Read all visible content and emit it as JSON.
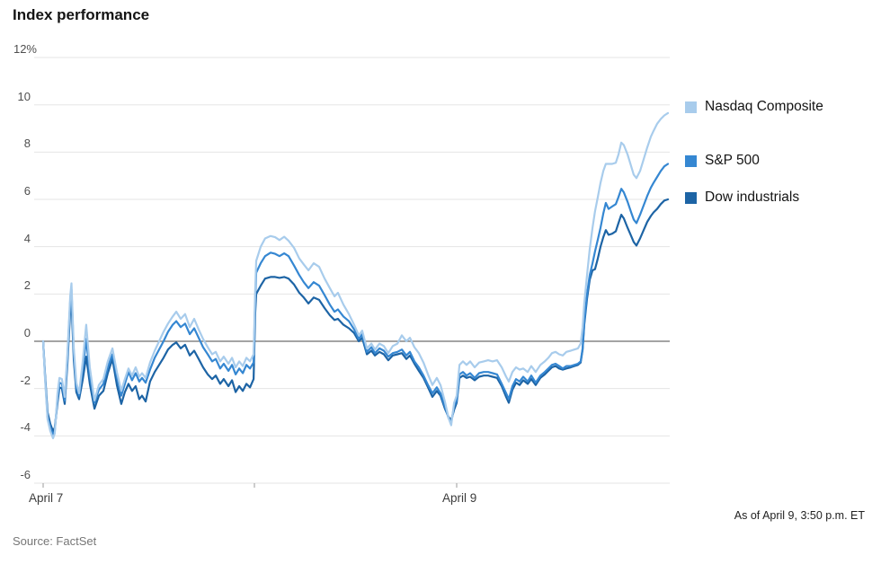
{
  "title": "Index performance",
  "source": "Source: FactSet",
  "as_of": "As of April 9, 3:50 p.m. ET",
  "legend_note": "legend rows aligned to line endpoints",
  "chart_data": {
    "type": "line",
    "title": "Index performance",
    "xlabel": "",
    "ylabel": "%",
    "ylim": [
      -6,
      12
    ],
    "grid": "horizontal",
    "legend_position": "right",
    "colors": {
      "gridline": "#e5e5e5",
      "zero_line": "#6e6e6e",
      "axis_tick": "#9b9b9b",
      "nasdaq": "#a8ccec",
      "sp500": "#3587d2",
      "dow": "#1d64a5"
    },
    "y_ticks": [
      {
        "value": 12,
        "label": "12%"
      },
      {
        "value": 10,
        "label": "10"
      },
      {
        "value": 8,
        "label": "8"
      },
      {
        "value": 6,
        "label": "6"
      },
      {
        "value": 4,
        "label": "4"
      },
      {
        "value": 2,
        "label": "2"
      },
      {
        "value": 0,
        "label": "0"
      },
      {
        "value": -2,
        "label": "-2"
      },
      {
        "value": -4,
        "label": "-4"
      },
      {
        "value": -6,
        "label": "-6"
      }
    ],
    "x_ticks": [
      {
        "t": 0,
        "label": "April 7"
      },
      {
        "t": 1,
        "label": ""
      },
      {
        "t": 2,
        "label": "April 9"
      }
    ],
    "x_unit": "trading day (0 = April 7 open, 1 = April 8 open, 2 = April 9 open, 3 = April 9 close ~3:50 p.m.)",
    "x": [
      0.0,
      0.009,
      0.021,
      0.034,
      0.047,
      0.055,
      0.068,
      0.077,
      0.089,
      0.102,
      0.115,
      0.128,
      0.134,
      0.145,
      0.157,
      0.17,
      0.187,
      0.204,
      0.221,
      0.243,
      0.264,
      0.285,
      0.306,
      0.328,
      0.349,
      0.37,
      0.387,
      0.404,
      0.421,
      0.438,
      0.455,
      0.468,
      0.485,
      0.506,
      0.528,
      0.549,
      0.57,
      0.591,
      0.613,
      0.63,
      0.651,
      0.672,
      0.694,
      0.715,
      0.736,
      0.757,
      0.779,
      0.8,
      0.817,
      0.838,
      0.855,
      0.877,
      0.894,
      0.911,
      0.928,
      0.945,
      0.962,
      0.979,
      0.996,
      1.004,
      1.009,
      1.031,
      1.053,
      1.08,
      1.102,
      1.124,
      1.147,
      1.169,
      1.196,
      1.222,
      1.244,
      1.267,
      1.293,
      1.32,
      1.347,
      1.373,
      1.396,
      1.413,
      1.44,
      1.467,
      1.493,
      1.516,
      1.533,
      1.556,
      1.578,
      1.596,
      1.618,
      1.64,
      1.662,
      1.684,
      1.707,
      1.729,
      1.751,
      1.769,
      1.791,
      1.813,
      1.836,
      1.858,
      1.88,
      1.902,
      1.92,
      1.942,
      1.96,
      1.973,
      1.987,
      2.0,
      2.013,
      2.03,
      2.047,
      2.064,
      2.085,
      2.106,
      2.128,
      2.149,
      2.17,
      2.191,
      2.213,
      2.234,
      2.247,
      2.264,
      2.281,
      2.298,
      2.315,
      2.336,
      2.353,
      2.374,
      2.396,
      2.417,
      2.434,
      2.451,
      2.468,
      2.485,
      2.502,
      2.519,
      2.54,
      2.557,
      2.574,
      2.587,
      2.596,
      2.604,
      2.617,
      2.63,
      2.643,
      2.655,
      2.668,
      2.681,
      2.694,
      2.706,
      2.719,
      2.736,
      2.753,
      2.766,
      2.779,
      2.791,
      2.809,
      2.826,
      2.838,
      2.851,
      2.868,
      2.885,
      2.902,
      2.919,
      2.932,
      2.949,
      2.966,
      2.983,
      3.0
    ],
    "series": [
      {
        "name": "Nasdaq Composite",
        "color": "#a8ccec",
        "values": [
          0,
          -1.6,
          -3.3,
          -3.8,
          -4.1,
          -3.9,
          -2.2,
          -1.55,
          -1.6,
          -2.35,
          -0.5,
          1.9,
          2.45,
          -0.3,
          -1.75,
          -2.2,
          -0.9,
          0.7,
          -1.1,
          -2.5,
          -1.85,
          -1.6,
          -0.85,
          -0.3,
          -1.3,
          -2.1,
          -1.6,
          -1.15,
          -1.45,
          -1.1,
          -1.5,
          -1.35,
          -1.55,
          -0.9,
          -0.4,
          0.0,
          0.4,
          0.75,
          1.05,
          1.25,
          0.95,
          1.15,
          0.6,
          0.95,
          0.5,
          0.1,
          -0.25,
          -0.55,
          -0.45,
          -0.85,
          -0.65,
          -0.95,
          -0.7,
          -1.1,
          -0.85,
          -1.05,
          -0.7,
          -0.85,
          -0.55,
          2.2,
          3.4,
          4.0,
          4.35,
          4.45,
          4.4,
          4.28,
          4.42,
          4.25,
          3.95,
          3.5,
          3.25,
          3.0,
          3.3,
          3.15,
          2.65,
          2.25,
          1.9,
          2.05,
          1.55,
          1.15,
          0.7,
          0.25,
          0.45,
          -0.3,
          -0.1,
          -0.35,
          -0.1,
          -0.2,
          -0.5,
          -0.2,
          -0.1,
          0.25,
          0.0,
          0.15,
          -0.25,
          -0.5,
          -0.9,
          -1.4,
          -1.85,
          -1.55,
          -1.85,
          -2.55,
          -3.25,
          -3.55,
          -2.6,
          -2.3,
          -1.0,
          -0.85,
          -1.0,
          -0.85,
          -1.1,
          -0.9,
          -0.85,
          -0.8,
          -0.85,
          -0.8,
          -1.1,
          -1.5,
          -1.7,
          -1.3,
          -1.1,
          -1.2,
          -1.15,
          -1.3,
          -1.05,
          -1.3,
          -1.0,
          -0.85,
          -0.7,
          -0.5,
          -0.45,
          -0.55,
          -0.6,
          -0.45,
          -0.4,
          -0.35,
          -0.3,
          -0.1,
          0.6,
          1.6,
          2.8,
          3.9,
          4.8,
          5.5,
          6.1,
          6.7,
          7.2,
          7.5,
          7.5,
          7.5,
          7.55,
          7.9,
          8.4,
          8.3,
          7.9,
          7.4,
          7.05,
          6.9,
          7.2,
          7.7,
          8.2,
          8.65,
          8.9,
          9.2,
          9.4,
          9.55,
          9.65
        ]
      },
      {
        "name": "S&P 500",
        "color": "#3587d2",
        "values": [
          0,
          -1.5,
          -3.2,
          -3.65,
          -3.95,
          -3.8,
          -2.4,
          -1.75,
          -1.8,
          -2.5,
          -0.7,
          1.7,
          2.2,
          -0.5,
          -1.95,
          -2.3,
          -1.25,
          0.1,
          -1.45,
          -2.6,
          -2.05,
          -1.8,
          -1.1,
          -0.55,
          -1.5,
          -2.3,
          -1.8,
          -1.3,
          -1.65,
          -1.35,
          -1.7,
          -1.55,
          -1.75,
          -1.2,
          -0.7,
          -0.35,
          0.0,
          0.4,
          0.7,
          0.85,
          0.6,
          0.75,
          0.3,
          0.55,
          0.15,
          -0.25,
          -0.55,
          -0.85,
          -0.75,
          -1.15,
          -0.95,
          -1.25,
          -1.0,
          -1.4,
          -1.15,
          -1.35,
          -1.0,
          -1.15,
          -0.9,
          1.8,
          2.9,
          3.3,
          3.6,
          3.75,
          3.7,
          3.6,
          3.72,
          3.6,
          3.2,
          2.8,
          2.5,
          2.25,
          2.5,
          2.35,
          1.95,
          1.55,
          1.25,
          1.35,
          1.05,
          0.85,
          0.5,
          0.1,
          0.3,
          -0.45,
          -0.25,
          -0.5,
          -0.3,
          -0.4,
          -0.65,
          -0.5,
          -0.45,
          -0.35,
          -0.6,
          -0.45,
          -0.85,
          -1.1,
          -1.45,
          -1.85,
          -2.2,
          -1.95,
          -2.2,
          -2.75,
          -3.25,
          -3.45,
          -2.75,
          -2.5,
          -1.4,
          -1.3,
          -1.45,
          -1.35,
          -1.55,
          -1.35,
          -1.3,
          -1.3,
          -1.35,
          -1.4,
          -1.8,
          -2.2,
          -2.45,
          -1.9,
          -1.6,
          -1.7,
          -1.5,
          -1.7,
          -1.45,
          -1.75,
          -1.45,
          -1.3,
          -1.15,
          -1.0,
          -0.95,
          -1.05,
          -1.15,
          -1.05,
          -1.05,
          -1.0,
          -0.95,
          -0.85,
          -0.3,
          0.8,
          2.0,
          2.8,
          3.3,
          3.8,
          4.3,
          4.8,
          5.4,
          5.85,
          5.6,
          5.7,
          5.8,
          6.1,
          6.45,
          6.3,
          5.9,
          5.45,
          5.15,
          5.0,
          5.35,
          5.75,
          6.15,
          6.5,
          6.7,
          6.95,
          7.2,
          7.4,
          7.5
        ]
      },
      {
        "name": "Dow industrials",
        "color": "#1d64a5",
        "values": [
          0,
          -1.4,
          -3.0,
          -3.5,
          -3.8,
          -3.65,
          -2.6,
          -1.95,
          -2.0,
          -2.65,
          -0.95,
          1.3,
          1.7,
          -0.8,
          -2.15,
          -2.45,
          -1.65,
          -0.65,
          -1.8,
          -2.85,
          -2.3,
          -2.1,
          -1.35,
          -0.75,
          -1.85,
          -2.65,
          -2.15,
          -1.8,
          -2.1,
          -1.9,
          -2.45,
          -2.3,
          -2.55,
          -1.7,
          -1.3,
          -1.0,
          -0.7,
          -0.35,
          -0.15,
          -0.05,
          -0.3,
          -0.15,
          -0.6,
          -0.4,
          -0.75,
          -1.1,
          -1.4,
          -1.6,
          -1.45,
          -1.8,
          -1.6,
          -1.9,
          -1.65,
          -2.15,
          -1.9,
          -2.1,
          -1.8,
          -1.95,
          -1.6,
          1.2,
          2.0,
          2.35,
          2.65,
          2.72,
          2.72,
          2.68,
          2.72,
          2.65,
          2.4,
          2.05,
          1.85,
          1.6,
          1.85,
          1.75,
          1.4,
          1.1,
          0.9,
          0.95,
          0.7,
          0.55,
          0.35,
          0.0,
          0.15,
          -0.55,
          -0.4,
          -0.6,
          -0.45,
          -0.55,
          -0.8,
          -0.6,
          -0.55,
          -0.5,
          -0.75,
          -0.6,
          -0.95,
          -1.25,
          -1.55,
          -1.95,
          -2.35,
          -2.1,
          -2.3,
          -2.85,
          -3.2,
          -3.35,
          -2.9,
          -2.6,
          -1.55,
          -1.45,
          -1.55,
          -1.5,
          -1.65,
          -1.5,
          -1.45,
          -1.45,
          -1.5,
          -1.55,
          -1.9,
          -2.35,
          -2.6,
          -2.05,
          -1.75,
          -1.85,
          -1.65,
          -1.8,
          -1.6,
          -1.85,
          -1.55,
          -1.4,
          -1.25,
          -1.1,
          -1.05,
          -1.15,
          -1.2,
          -1.15,
          -1.1,
          -1.05,
          -1.0,
          -0.9,
          -0.35,
          0.7,
          1.8,
          2.6,
          3.0,
          3.05,
          3.5,
          4.0,
          4.4,
          4.7,
          4.5,
          4.55,
          4.65,
          5.0,
          5.35,
          5.2,
          4.8,
          4.45,
          4.2,
          4.05,
          4.35,
          4.7,
          5.05,
          5.3,
          5.45,
          5.6,
          5.8,
          5.95,
          6.0
        ]
      }
    ]
  }
}
